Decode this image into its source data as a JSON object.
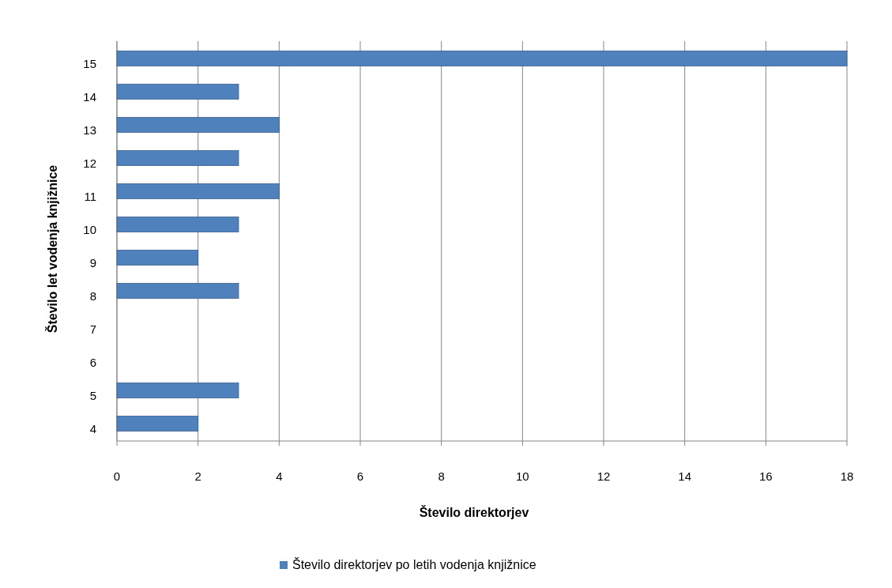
{
  "chart_data": {
    "type": "bar",
    "orientation": "horizontal",
    "xlabel": "Število direktorjev",
    "ylabel": "Število let vodenja knjižnice",
    "categories": [
      "15",
      "14",
      "13",
      "12",
      "11",
      "10",
      "9",
      "8",
      "7",
      "6",
      "5",
      "4"
    ],
    "series": [
      {
        "name": "Število direktorjev po letih vodenja knjižnice",
        "color": "#4f81bd",
        "values": [
          18,
          3,
          4,
          3,
          4,
          3,
          2,
          3,
          0,
          0,
          3,
          2
        ]
      }
    ],
    "xlim": [
      0,
      18
    ],
    "xticks": [
      0,
      2,
      4,
      6,
      8,
      10,
      12,
      14,
      16,
      18
    ],
    "grid": "x",
    "legend": "bottom"
  }
}
